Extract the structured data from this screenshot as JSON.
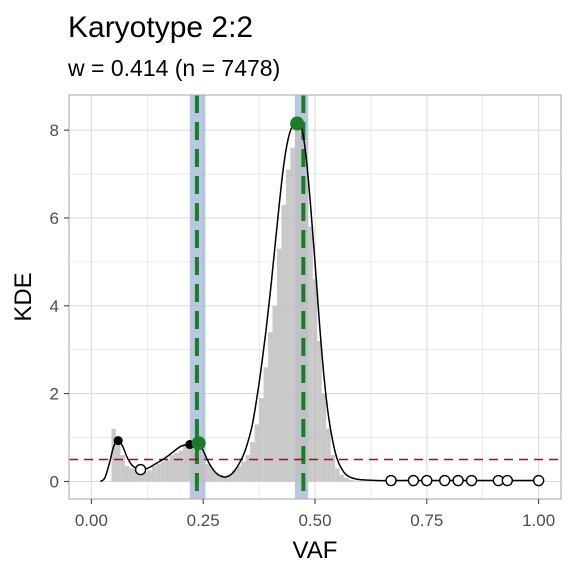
{
  "chart_data": {
    "type": "histogram-density",
    "title": "Karyotype 2:2",
    "subtitle": "w = 0.414 (n = 7478)",
    "xlabel": "VAF",
    "ylabel": "KDE",
    "xlim": [
      -0.05,
      1.05
    ],
    "ylim": [
      -0.4,
      8.8
    ],
    "xticks": [
      0.0,
      0.25,
      0.5,
      0.75,
      1.0
    ],
    "xtick_labels": [
      "0.00",
      "0.25",
      "0.50",
      "0.75",
      "1.00"
    ],
    "yticks": [
      0,
      2,
      4,
      6,
      8
    ],
    "ytick_labels": [
      "0",
      "2",
      "4",
      "6",
      "8"
    ],
    "grid": true,
    "colors": {
      "histogram": "#bfbfbf",
      "density_line": "#000000",
      "threshold_line": "#8b1a1a",
      "peak_band": "#9fb6d6",
      "expected_peak_line": "#1f7a2a",
      "peak_point": "#1f7a2a",
      "panel_border": "#b3b3b3",
      "grid": "#dcdcdc"
    },
    "histogram": {
      "bin_width": 0.01,
      "bins": [
        {
          "x": 0.05,
          "y": 1.2
        },
        {
          "x": 0.06,
          "y": 0.9
        },
        {
          "x": 0.07,
          "y": 0.6
        },
        {
          "x": 0.08,
          "y": 0.35
        },
        {
          "x": 0.09,
          "y": 0.3
        },
        {
          "x": 0.1,
          "y": 0.28
        },
        {
          "x": 0.11,
          "y": 0.25
        },
        {
          "x": 0.12,
          "y": 0.22
        },
        {
          "x": 0.13,
          "y": 0.25
        },
        {
          "x": 0.14,
          "y": 0.35
        },
        {
          "x": 0.15,
          "y": 0.4
        },
        {
          "x": 0.16,
          "y": 0.45
        },
        {
          "x": 0.17,
          "y": 0.5
        },
        {
          "x": 0.18,
          "y": 0.6
        },
        {
          "x": 0.19,
          "y": 0.65
        },
        {
          "x": 0.2,
          "y": 0.7
        },
        {
          "x": 0.21,
          "y": 0.85
        },
        {
          "x": 0.22,
          "y": 0.85
        },
        {
          "x": 0.23,
          "y": 1.0
        },
        {
          "x": 0.24,
          "y": 0.8
        },
        {
          "x": 0.25,
          "y": 0.6
        },
        {
          "x": 0.26,
          "y": 0.4
        },
        {
          "x": 0.27,
          "y": 0.3
        },
        {
          "x": 0.28,
          "y": 0.2
        },
        {
          "x": 0.29,
          "y": 0.15
        },
        {
          "x": 0.3,
          "y": 0.12
        },
        {
          "x": 0.31,
          "y": 0.15
        },
        {
          "x": 0.32,
          "y": 0.25
        },
        {
          "x": 0.33,
          "y": 0.35
        },
        {
          "x": 0.34,
          "y": 0.45
        },
        {
          "x": 0.35,
          "y": 0.6
        },
        {
          "x": 0.36,
          "y": 0.9
        },
        {
          "x": 0.37,
          "y": 1.3
        },
        {
          "x": 0.38,
          "y": 1.9
        },
        {
          "x": 0.39,
          "y": 2.6
        },
        {
          "x": 0.4,
          "y": 3.4
        },
        {
          "x": 0.41,
          "y": 4.0
        },
        {
          "x": 0.42,
          "y": 5.3
        },
        {
          "x": 0.43,
          "y": 6.3
        },
        {
          "x": 0.44,
          "y": 7.1
        },
        {
          "x": 0.45,
          "y": 7.6
        },
        {
          "x": 0.46,
          "y": 8.0
        },
        {
          "x": 0.47,
          "y": 7.9
        },
        {
          "x": 0.48,
          "y": 6.8
        },
        {
          "x": 0.49,
          "y": 5.8
        },
        {
          "x": 0.5,
          "y": 4.6
        },
        {
          "x": 0.51,
          "y": 3.2
        },
        {
          "x": 0.52,
          "y": 2.0
        },
        {
          "x": 0.53,
          "y": 1.2
        },
        {
          "x": 0.54,
          "y": 0.6
        },
        {
          "x": 0.55,
          "y": 0.3
        },
        {
          "x": 0.56,
          "y": 0.15
        },
        {
          "x": 0.57,
          "y": 0.08
        },
        {
          "x": 0.58,
          "y": 0.04
        },
        {
          "x": 0.59,
          "y": 0.02
        }
      ]
    },
    "density": {
      "x": [
        0.02,
        0.03,
        0.04,
        0.05,
        0.06,
        0.07,
        0.08,
        0.09,
        0.1,
        0.11,
        0.12,
        0.13,
        0.14,
        0.15,
        0.16,
        0.17,
        0.18,
        0.19,
        0.2,
        0.21,
        0.22,
        0.23,
        0.24,
        0.25,
        0.26,
        0.27,
        0.28,
        0.29,
        0.3,
        0.31,
        0.32,
        0.33,
        0.34,
        0.35,
        0.36,
        0.37,
        0.38,
        0.39,
        0.4,
        0.41,
        0.42,
        0.43,
        0.44,
        0.45,
        0.46,
        0.47,
        0.48,
        0.49,
        0.5,
        0.51,
        0.52,
        0.53,
        0.54,
        0.55,
        0.56,
        0.57,
        0.58,
        0.59,
        0.6,
        0.62,
        0.64,
        0.66,
        0.68,
        0.7,
        0.75,
        0.8,
        0.85,
        0.9,
        0.95,
        1.0
      ],
      "y": [
        0.0,
        0.08,
        0.4,
        0.8,
        0.93,
        0.8,
        0.55,
        0.38,
        0.3,
        0.27,
        0.28,
        0.32,
        0.38,
        0.44,
        0.5,
        0.57,
        0.65,
        0.73,
        0.8,
        0.83,
        0.84,
        0.87,
        0.86,
        0.7,
        0.48,
        0.3,
        0.18,
        0.12,
        0.1,
        0.14,
        0.24,
        0.4,
        0.6,
        0.9,
        1.3,
        1.9,
        2.6,
        3.4,
        4.3,
        5.3,
        6.3,
        7.2,
        7.8,
        8.1,
        8.15,
        8.05,
        7.4,
        6.3,
        5.0,
        3.6,
        2.4,
        1.5,
        0.9,
        0.5,
        0.28,
        0.15,
        0.09,
        0.06,
        0.04,
        0.03,
        0.02,
        0.02,
        0.02,
        0.02,
        0.02,
        0.02,
        0.02,
        0.02,
        0.02,
        0.02
      ]
    },
    "threshold_y": 0.5,
    "peak_bands": [
      {
        "xmin": 0.22,
        "xmax": 0.255
      },
      {
        "xmin": 0.455,
        "xmax": 0.485
      }
    ],
    "expected_peak_lines": [
      0.236,
      0.474
    ],
    "peak_points": [
      {
        "x": 0.24,
        "y": 0.87
      },
      {
        "x": 0.46,
        "y": 8.15
      }
    ],
    "detected_peaks": [
      {
        "x": 0.06,
        "y": 0.93
      },
      {
        "x": 0.22,
        "y": 0.84
      }
    ],
    "unused_peaks": [
      {
        "x": 0.11,
        "y": 0.27
      },
      {
        "x": 0.67,
        "y": 0.02
      },
      {
        "x": 0.72,
        "y": 0.02
      },
      {
        "x": 0.75,
        "y": 0.02
      },
      {
        "x": 0.79,
        "y": 0.02
      },
      {
        "x": 0.82,
        "y": 0.02
      },
      {
        "x": 0.85,
        "y": 0.02
      },
      {
        "x": 0.91,
        "y": 0.02
      },
      {
        "x": 0.93,
        "y": 0.02
      },
      {
        "x": 1.0,
        "y": 0.02
      }
    ]
  }
}
